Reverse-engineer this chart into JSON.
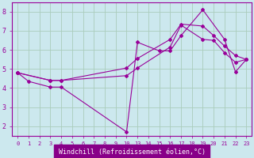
{
  "background_color": "#cce8ee",
  "line_color": "#990099",
  "grid_color": "#aaccbb",
  "xlabel": "Windchill (Refroidissement éolien,°C)",
  "ylim": [
    1.5,
    8.5
  ],
  "yticks": [
    2,
    3,
    4,
    5,
    6,
    7,
    8
  ],
  "xtick_labels": [
    "0",
    "1",
    "2",
    "3",
    "4",
    "5",
    "6",
    "7",
    "8",
    "9",
    "10",
    "13",
    "14",
    "15",
    "16",
    "17",
    "18",
    "19",
    "20",
    "21",
    "22",
    "23"
  ],
  "lines": [
    {
      "xi": [
        0,
        1,
        3,
        4,
        10,
        11,
        13,
        14,
        15,
        17,
        19,
        20,
        21
      ],
      "y": [
        4.8,
        4.35,
        4.05,
        4.05,
        1.7,
        6.4,
        5.95,
        5.95,
        6.75,
        8.1,
        6.55,
        4.85,
        5.5
      ]
    },
    {
      "xi": [
        0,
        3,
        4,
        10,
        11,
        14,
        15,
        17,
        18,
        19,
        20,
        21
      ],
      "y": [
        4.8,
        4.4,
        4.4,
        4.65,
        5.05,
        6.15,
        7.3,
        6.55,
        6.5,
        5.85,
        5.35,
        5.5
      ]
    },
    {
      "xi": [
        0,
        3,
        4,
        10,
        11,
        14,
        15,
        17,
        18,
        19,
        20,
        21
      ],
      "y": [
        4.8,
        4.4,
        4.4,
        5.05,
        5.55,
        6.55,
        7.35,
        7.25,
        6.75,
        6.2,
        5.7,
        5.5
      ]
    }
  ]
}
